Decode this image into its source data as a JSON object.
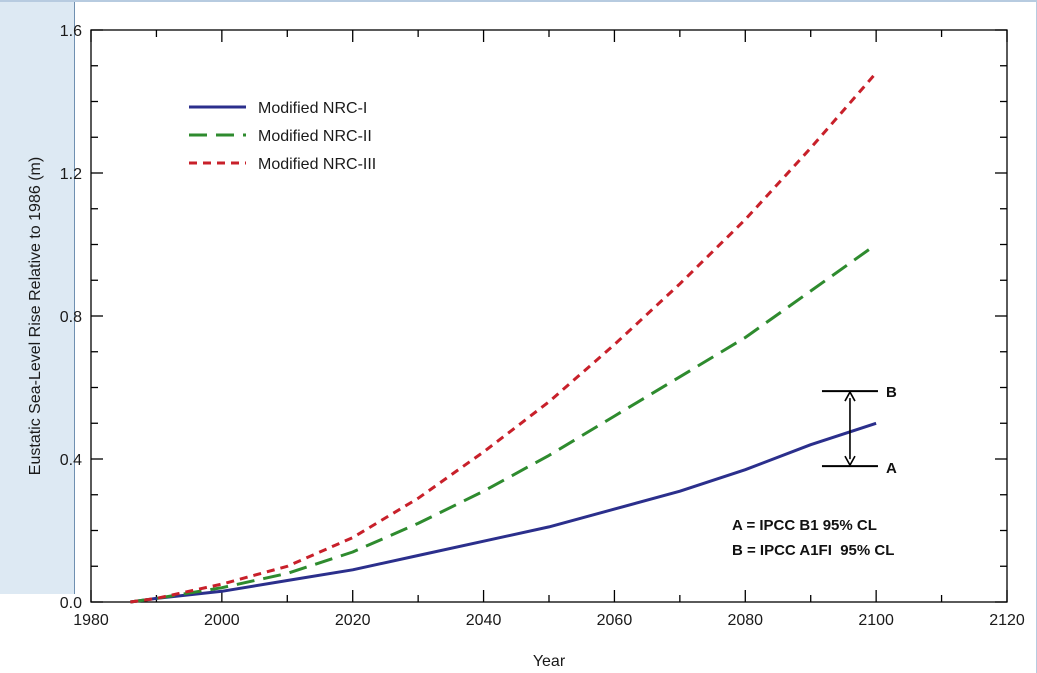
{
  "chart_data": {
    "type": "line",
    "xlabel": "Year",
    "ylabel": "Eustatic Sea-Level Rise Relative to 1986 (m)",
    "xlim": [
      1980,
      2120
    ],
    "ylim": [
      0,
      1.6
    ],
    "x_ticks": [
      "1980",
      "2000",
      "2020",
      "2040",
      "2060",
      "2080",
      "2100",
      "2120"
    ],
    "y_ticks": [
      "0.0",
      "0.4",
      "0.8",
      "1.2",
      "1.6"
    ],
    "legend_position": "top-left",
    "grid": false,
    "series": [
      {
        "name": "Modified NRC-I",
        "color": "#2b2f8c",
        "style": "solid",
        "x": [
          1986,
          1990,
          2000,
          2010,
          2020,
          2030,
          2040,
          2050,
          2060,
          2070,
          2080,
          2090,
          2100
        ],
        "y": [
          0.0,
          0.01,
          0.03,
          0.06,
          0.09,
          0.13,
          0.17,
          0.21,
          0.26,
          0.31,
          0.37,
          0.44,
          0.5
        ]
      },
      {
        "name": "Modified NRC-II",
        "color": "#2e8b2e",
        "style": "long-dash",
        "x": [
          1986,
          1990,
          2000,
          2010,
          2020,
          2030,
          2040,
          2050,
          2060,
          2070,
          2080,
          2090,
          2100
        ],
        "y": [
          0.0,
          0.01,
          0.04,
          0.08,
          0.14,
          0.22,
          0.31,
          0.41,
          0.52,
          0.63,
          0.74,
          0.87,
          1.0
        ]
      },
      {
        "name": "Modified NRC-III",
        "color": "#c8202a",
        "style": "short-dash",
        "x": [
          1986,
          1990,
          2000,
          2010,
          2020,
          2030,
          2040,
          2050,
          2060,
          2070,
          2080,
          2090,
          2100
        ],
        "y": [
          0.0,
          0.01,
          0.05,
          0.1,
          0.18,
          0.29,
          0.42,
          0.56,
          0.72,
          0.89,
          1.07,
          1.27,
          1.48
        ]
      }
    ],
    "range_marker": {
      "x": 2096,
      "low_label": "A",
      "low_value": 0.38,
      "high_label": "B",
      "high_value": 0.59,
      "color": "#000000"
    },
    "annotations": [
      "A = IPCC B1 95% CL",
      "B = IPCC A1FI  95% CL"
    ]
  }
}
